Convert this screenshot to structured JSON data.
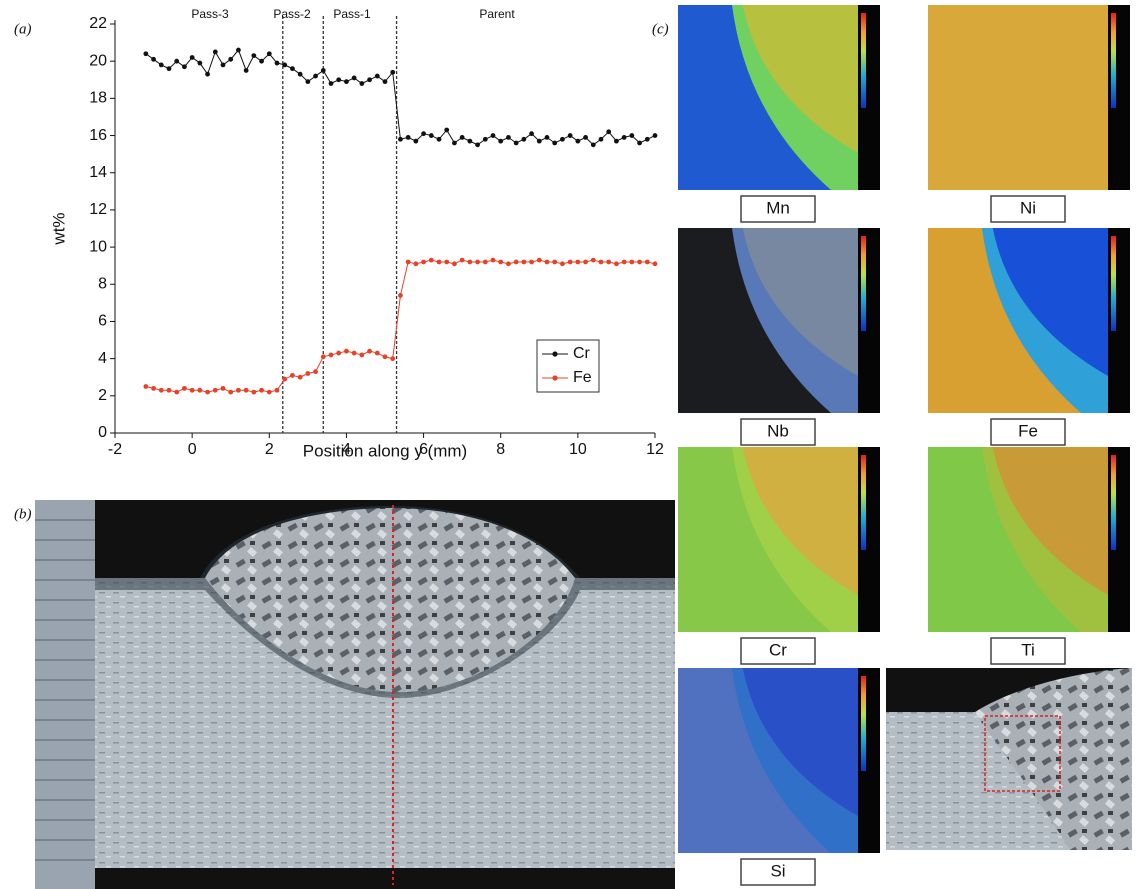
{
  "panel_labels": [
    "(a)",
    "(b)",
    "(c)"
  ],
  "chart_data": {
    "type": "line",
    "x_label": "Position along y (mm)",
    "y_label": "wt%",
    "region_labels": [
      "Pass-3",
      "Pass-2",
      "Pass-1",
      "Parent"
    ],
    "boundaries": [
      2.35,
      3.4,
      5.3
    ],
    "x": [
      -1.2,
      -1,
      -0.8,
      -0.6,
      -0.4,
      -0.2,
      0,
      0.2,
      0.4,
      0.6,
      0.8,
      1,
      1.2,
      1.4,
      1.6,
      1.8,
      2,
      2.2,
      2.4,
      2.6,
      2.8,
      3,
      3.2,
      3.4,
      3.6,
      3.8,
      4,
      4.2,
      4.4,
      4.6,
      4.8,
      5,
      5.2,
      5.4,
      5.6,
      5.8,
      6,
      6.2,
      6.4,
      6.6,
      6.8,
      7,
      7.2,
      7.4,
      7.6,
      7.8,
      8,
      8.2,
      8.4,
      8.6,
      8.8,
      9,
      9.2,
      9.4,
      9.6,
      9.8,
      10,
      10.2,
      10.4,
      10.6,
      10.8,
      11,
      11.2,
      11.4,
      11.6,
      11.8,
      12
    ],
    "series": [
      {
        "name": "Cr",
        "color": "#111111",
        "values": [
          20.4,
          20.1,
          19.8,
          19.6,
          20.0,
          19.7,
          20.2,
          19.9,
          19.3,
          20.5,
          19.8,
          20.1,
          20.6,
          19.5,
          20.3,
          20.0,
          20.4,
          19.9,
          19.8,
          19.6,
          19.3,
          18.9,
          19.2,
          19.5,
          18.8,
          19.0,
          18.9,
          19.1,
          18.8,
          19.0,
          19.2,
          18.9,
          19.4,
          15.8,
          15.9,
          15.7,
          16.1,
          16.0,
          15.8,
          16.3,
          15.6,
          15.9,
          15.7,
          15.5,
          15.8,
          16.0,
          15.7,
          15.9,
          15.6,
          15.8,
          16.1,
          15.7,
          15.9,
          15.6,
          15.8,
          16.0,
          15.7,
          15.9,
          15.5,
          15.8,
          16.2,
          15.7,
          15.9,
          16.0,
          15.6,
          15.8,
          16.0
        ]
      },
      {
        "name": "Fe",
        "color": "#e8412a",
        "values": [
          2.5,
          2.4,
          2.3,
          2.3,
          2.2,
          2.4,
          2.3,
          2.3,
          2.2,
          2.3,
          2.4,
          2.2,
          2.3,
          2.3,
          2.2,
          2.3,
          2.2,
          2.3,
          2.9,
          3.1,
          3.0,
          3.2,
          3.3,
          4.1,
          4.2,
          4.3,
          4.4,
          4.3,
          4.2,
          4.4,
          4.3,
          4.1,
          4.0,
          7.4,
          9.2,
          9.1,
          9.2,
          9.3,
          9.2,
          9.2,
          9.1,
          9.3,
          9.2,
          9.2,
          9.2,
          9.3,
          9.2,
          9.1,
          9.2,
          9.2,
          9.2,
          9.3,
          9.2,
          9.2,
          9.1,
          9.2,
          9.2,
          9.2,
          9.3,
          9.2,
          9.2,
          9.1,
          9.2,
          9.2,
          9.2,
          9.2,
          9.1
        ]
      }
    ],
    "xlim": [
      -2,
      12
    ],
    "xticks": [
      -2,
      0,
      2,
      4,
      6,
      8,
      10,
      12
    ],
    "ylim": [
      0,
      22
    ],
    "yticks": [
      0,
      2,
      4,
      6,
      8,
      10,
      12,
      14,
      16,
      18,
      20,
      22
    ],
    "legend": "lower-right"
  },
  "maps": [
    "Mn",
    "Ni",
    "Nb",
    "Fe",
    "Cr",
    "Ti",
    "Si"
  ]
}
